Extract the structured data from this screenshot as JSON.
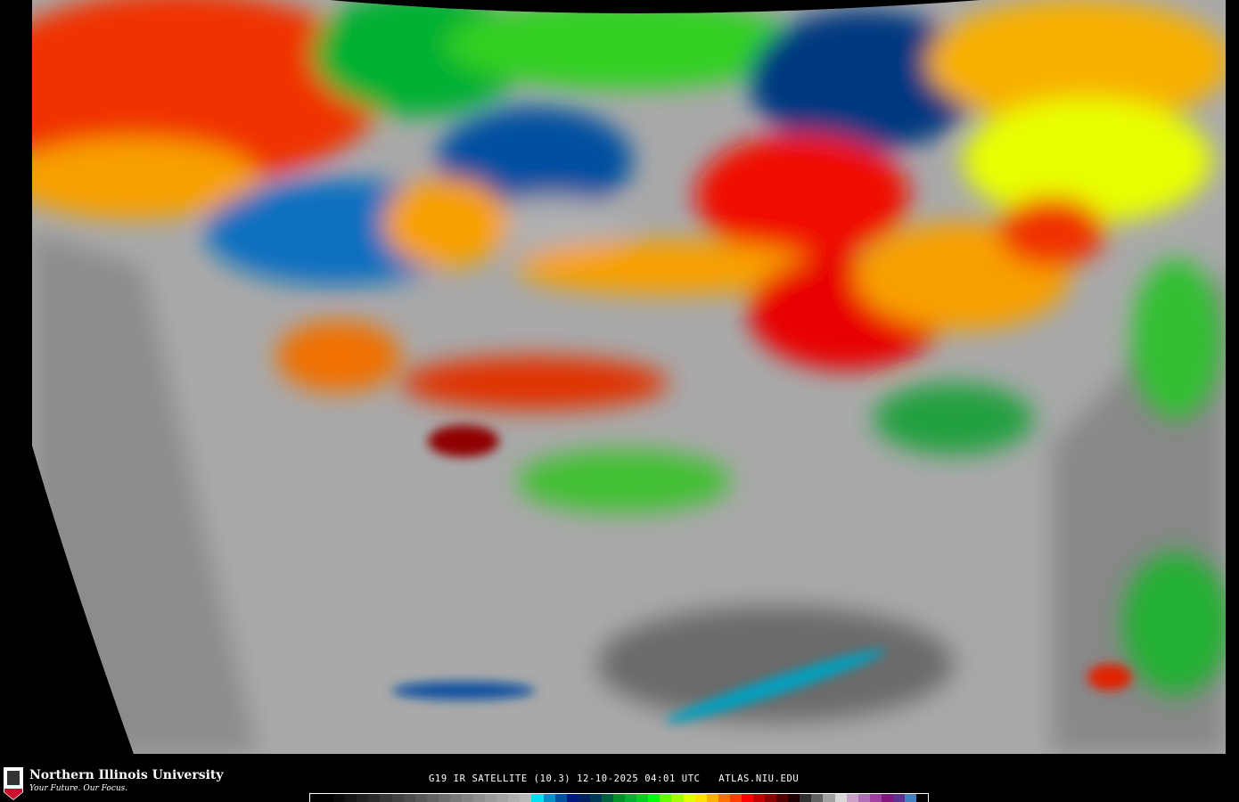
{
  "map": {
    "product": "G19 IR SATELLITE (10.3)",
    "date": "12-10-2025",
    "time": "04:01 UTC",
    "site": "ATLAS.NIU.EDU",
    "caption": "G19 IR SATELLITE (10.3) 12-10-2025 04:01 UTC   ATLAS.NIU.EDU"
  },
  "branding": {
    "name": "Northern Illinois University",
    "tagline": "Your Future. Our Focus.",
    "logo_text": "NIU"
  },
  "colorbar": {
    "colors": [
      "#000000",
      "#000000",
      "#0a0a0a",
      "#151515",
      "#202020",
      "#2b2b2b",
      "#363636",
      "#414141",
      "#4c4c4c",
      "#575757",
      "#626262",
      "#6d6d6d",
      "#787878",
      "#838383",
      "#8e8e8e",
      "#999999",
      "#a4a4a4",
      "#afafaf",
      "#bababa",
      "#00e0f0",
      "#0090c8",
      "#0050a0",
      "#001880",
      "#002060",
      "#003858",
      "#006040",
      "#00902c",
      "#00b030",
      "#00d020",
      "#00ff00",
      "#60ff00",
      "#a0ff00",
      "#e0ff00",
      "#ffe000",
      "#ffb000",
      "#ff7000",
      "#ff4000",
      "#ff0000",
      "#c00000",
      "#880000",
      "#500000",
      "#200000",
      "#303030",
      "#606060",
      "#a0a0a0",
      "#d8d8d8",
      "#c8a0c8",
      "#b070b8",
      "#a040a0",
      "#801880",
      "#603090",
      "#4080c0",
      "#000000"
    ]
  }
}
